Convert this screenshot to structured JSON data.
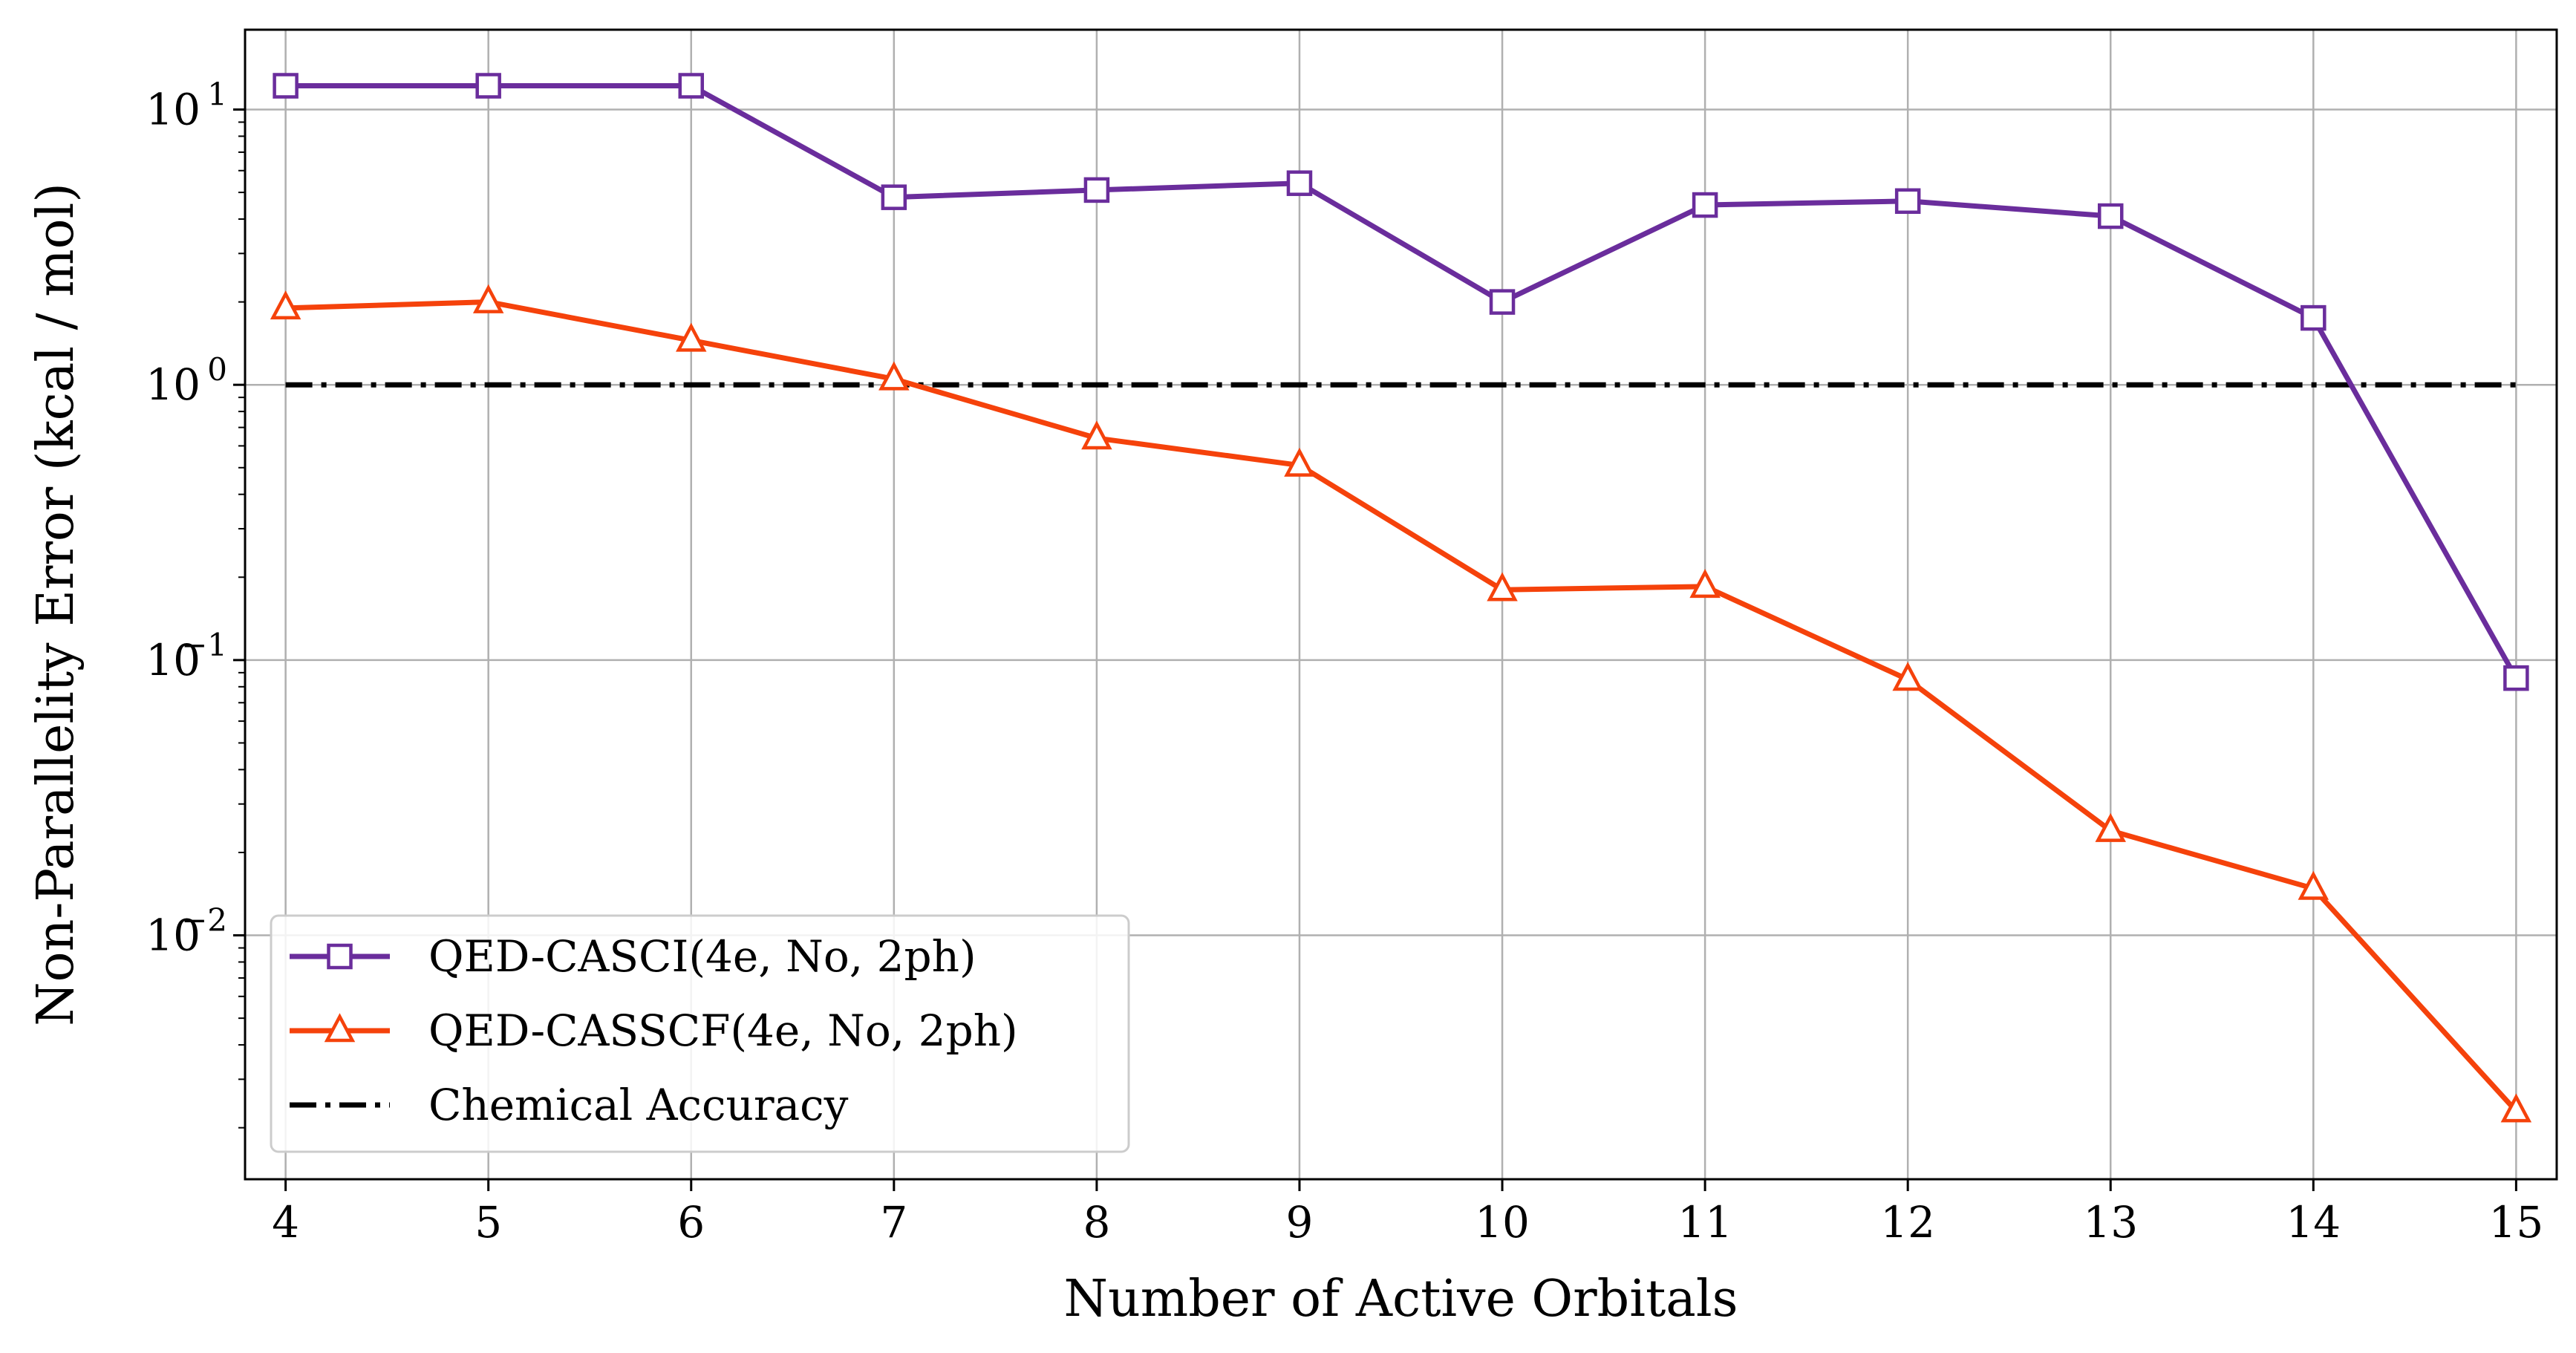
{
  "chart_data": {
    "type": "line",
    "title": "",
    "xlabel": "Number of Active Orbitals",
    "ylabel": "Non-Parallelity Error (kcal / mol)",
    "yscale": "log",
    "xlim": [
      3.8,
      15.2
    ],
    "ylim": [
      0.0013,
      19.5
    ],
    "x": [
      4,
      5,
      6,
      7,
      8,
      9,
      10,
      11,
      12,
      13,
      14,
      15
    ],
    "x_ticks": [
      "4",
      "5",
      "6",
      "7",
      "8",
      "9",
      "10",
      "11",
      "12",
      "13",
      "14",
      "15"
    ],
    "y_ticks": [
      {
        "value": 10,
        "base": "10",
        "exp": "1"
      },
      {
        "value": 1,
        "base": "10",
        "exp": "0"
      },
      {
        "value": 0.1,
        "base": "10",
        "exp": "−1"
      },
      {
        "value": 0.01,
        "base": "10",
        "exp": "−2"
      }
    ],
    "grid": true,
    "legend_position": "lower-left",
    "series": [
      {
        "name": "QED-CASCI(4e, No, 2ph)",
        "color": "#6a2d9c",
        "marker": "square",
        "values": [
          12.2,
          12.2,
          12.2,
          4.8,
          5.1,
          5.4,
          2.0,
          4.5,
          4.65,
          4.1,
          1.75,
          0.086
        ]
      },
      {
        "name": "QED-CASSCF(4e, No, 2ph)",
        "color": "#f5420b",
        "marker": "triangle",
        "values": [
          1.9,
          2.0,
          1.45,
          1.05,
          0.64,
          0.51,
          0.18,
          0.185,
          0.085,
          0.024,
          0.0148,
          0.0023
        ]
      }
    ],
    "reference_lines": [
      {
        "name": "Chemical Accuracy",
        "y": 1.0,
        "color": "#000000",
        "style": "dash-dot"
      }
    ]
  }
}
